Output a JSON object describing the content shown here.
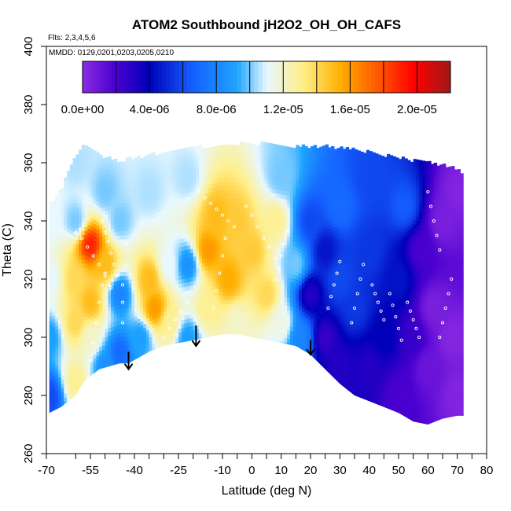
{
  "chart_data": {
    "type": "heatmap",
    "title": "ATOM2 Southbound jH2O2_OH_OH_CAFS",
    "flights_note": "Flts: 2,3,4,5,6",
    "dates_note": "MMDD: 0129,0201,0203,0205,0210",
    "xlabel": "Latitude (deg N)",
    "ylabel": "Theta (C)",
    "xlim": [
      -70,
      80
    ],
    "ylim": [
      260,
      400
    ],
    "x_ticks": [
      -70,
      -55,
      -40,
      -25,
      -10,
      0,
      10,
      20,
      30,
      40,
      50,
      60,
      70,
      80
    ],
    "x_tick_labels": [
      "-70",
      "-55",
      "-40",
      "-25",
      "-10",
      "0",
      "10",
      "20",
      "30",
      "40",
      "50",
      "60",
      "70",
      "80"
    ],
    "x_minor_ticks": [
      -60,
      -50,
      -45,
      -35,
      -30,
      -20,
      -15,
      -5,
      5,
      15,
      25,
      35,
      45,
      55,
      65,
      75
    ],
    "y_ticks": [
      260,
      280,
      300,
      320,
      340,
      360,
      380,
      400
    ],
    "y_tick_labels": [
      "260",
      "280",
      "300",
      "320",
      "340",
      "360",
      "380",
      "400"
    ],
    "colorbar": {
      "range": [
        0,
        2.2e-05
      ],
      "ticks": [
        0,
        4e-06,
        8e-06,
        1.2e-05,
        1.6e-05,
        2e-05
      ],
      "tick_labels": [
        "0.0e+00",
        "4.0e-06",
        "8.0e-06",
        "1.2e-05",
        "1.6e-05",
        "2.0e-05"
      ],
      "stops": [
        {
          "v": 0.0,
          "color": "#8a2be2"
        },
        {
          "v": 0.09,
          "color": "#4b00d0"
        },
        {
          "v": 0.18,
          "color": "#0000b8"
        },
        {
          "v": 0.3,
          "color": "#1560ff"
        },
        {
          "v": 0.42,
          "color": "#1ea5ff"
        },
        {
          "v": 0.5,
          "color": "#e8f8ff"
        },
        {
          "v": 0.6,
          "color": "#ffef88"
        },
        {
          "v": 0.7,
          "color": "#ffb000"
        },
        {
          "v": 0.83,
          "color": "#ff4000"
        },
        {
          "v": 0.9,
          "color": "#ff0000"
        },
        {
          "v": 1.0,
          "color": "#a01818"
        }
      ]
    },
    "terrain_floor_theta": [
      [
        -69,
        274
      ],
      [
        -65,
        276
      ],
      [
        -60,
        280
      ],
      [
        -57,
        285
      ],
      [
        -52,
        289
      ],
      [
        -45,
        291
      ],
      [
        -42,
        291
      ],
      [
        -35,
        295
      ],
      [
        -30,
        297
      ],
      [
        -25,
        298
      ],
      [
        -20,
        299
      ],
      [
        -15,
        300
      ],
      [
        -10,
        301
      ],
      [
        -5,
        301
      ],
      [
        0,
        300
      ],
      [
        5,
        299
      ],
      [
        10,
        298
      ],
      [
        15,
        297
      ],
      [
        20,
        294
      ],
      [
        25,
        289
      ],
      [
        30,
        284
      ],
      [
        35,
        280
      ],
      [
        40,
        278
      ],
      [
        45,
        276
      ],
      [
        50,
        274
      ],
      [
        55,
        271
      ],
      [
        60,
        270
      ],
      [
        65,
        272
      ],
      [
        70,
        273
      ]
    ],
    "data_top_theta": [
      [
        -69,
        345
      ],
      [
        -65,
        350
      ],
      [
        -60,
        362
      ],
      [
        -57,
        366
      ],
      [
        -52,
        362
      ],
      [
        -45,
        360
      ],
      [
        -35,
        362
      ],
      [
        -25,
        364
      ],
      [
        -15,
        365
      ],
      [
        -5,
        366
      ],
      [
        5,
        366
      ],
      [
        15,
        365
      ],
      [
        25,
        365
      ],
      [
        35,
        364
      ],
      [
        45,
        362
      ],
      [
        55,
        360
      ],
      [
        62,
        359
      ],
      [
        68,
        358
      ],
      [
        72,
        356
      ]
    ],
    "field_anchors": [
      {
        "lat": -69,
        "theta": 280,
        "value": 6e-06
      },
      {
        "lat": -69,
        "theta": 300,
        "value": 9e-06
      },
      {
        "lat": -69,
        "theta": 320,
        "value": 1.1e-05
      },
      {
        "lat": -69,
        "theta": 340,
        "value": 1.1e-05
      },
      {
        "lat": -60,
        "theta": 285,
        "value": 1.3e-05
      },
      {
        "lat": -60,
        "theta": 305,
        "value": 1.4e-05
      },
      {
        "lat": -60,
        "theta": 320,
        "value": 1.4e-05
      },
      {
        "lat": -60,
        "theta": 340,
        "value": 1e-05
      },
      {
        "lat": -60,
        "theta": 360,
        "value": 1.05e-05
      },
      {
        "lat": -55,
        "theta": 300,
        "value": 1.2e-05
      },
      {
        "lat": -55,
        "theta": 332,
        "value": 1.9e-05
      },
      {
        "lat": -55,
        "theta": 312,
        "value": 1.5e-05
      },
      {
        "lat": -50,
        "theta": 290,
        "value": 8.5e-06
      },
      {
        "lat": -50,
        "theta": 325,
        "value": 1.5e-05
      },
      {
        "lat": -50,
        "theta": 350,
        "value": 1e-05
      },
      {
        "lat": -45,
        "theta": 295,
        "value": 7e-06
      },
      {
        "lat": -45,
        "theta": 315,
        "value": 8e-06
      },
      {
        "lat": -45,
        "theta": 340,
        "value": 1e-05
      },
      {
        "lat": -38,
        "theta": 300,
        "value": 9e-06
      },
      {
        "lat": -35,
        "theta": 320,
        "value": 1.5e-05
      },
      {
        "lat": -33,
        "theta": 310,
        "value": 1.6e-05
      },
      {
        "lat": -35,
        "theta": 350,
        "value": 1.05e-05
      },
      {
        "lat": -28,
        "theta": 305,
        "value": 1.3e-05
      },
      {
        "lat": -28,
        "theta": 325,
        "value": 1.1e-05
      },
      {
        "lat": -22,
        "theta": 300,
        "value": 9e-06
      },
      {
        "lat": -22,
        "theta": 325,
        "value": 8.5e-06
      },
      {
        "lat": -22,
        "theta": 355,
        "value": 1.05e-05
      },
      {
        "lat": -15,
        "theta": 310,
        "value": 1.3e-05
      },
      {
        "lat": -15,
        "theta": 330,
        "value": 1.6e-05
      },
      {
        "lat": -12,
        "theta": 342,
        "value": 1.5e-05
      },
      {
        "lat": -8,
        "theta": 320,
        "value": 1.55e-05
      },
      {
        "lat": -5,
        "theta": 340,
        "value": 1.45e-05
      },
      {
        "lat": -5,
        "theta": 305,
        "value": 1.2e-05
      },
      {
        "lat": 0,
        "theta": 330,
        "value": 1.45e-05
      },
      {
        "lat": 5,
        "theta": 315,
        "value": 1.4e-05
      },
      {
        "lat": 8,
        "theta": 340,
        "value": 1.3e-05
      },
      {
        "lat": 10,
        "theta": 305,
        "value": 1.15e-05
      },
      {
        "lat": 10,
        "theta": 355,
        "value": 1e-05
      },
      {
        "lat": 15,
        "theta": 325,
        "value": 1e-05
      },
      {
        "lat": 17,
        "theta": 300,
        "value": 8e-06
      },
      {
        "lat": 20,
        "theta": 315,
        "value": 3e-06
      },
      {
        "lat": 20,
        "theta": 340,
        "value": 6e-06
      },
      {
        "lat": 25,
        "theta": 300,
        "value": 2.5e-06
      },
      {
        "lat": 25,
        "theta": 330,
        "value": 4.5e-06
      },
      {
        "lat": 30,
        "theta": 290,
        "value": 3e-06
      },
      {
        "lat": 30,
        "theta": 320,
        "value": 6e-06
      },
      {
        "lat": 30,
        "theta": 345,
        "value": 7e-06
      },
      {
        "lat": 35,
        "theta": 310,
        "value": 5.5e-06
      },
      {
        "lat": 40,
        "theta": 290,
        "value": 3e-06
      },
      {
        "lat": 40,
        "theta": 330,
        "value": 5.5e-06
      },
      {
        "lat": 40,
        "theta": 355,
        "value": 6e-06
      },
      {
        "lat": 45,
        "theta": 300,
        "value": 4e-06
      },
      {
        "lat": 50,
        "theta": 280,
        "value": 2e-06
      },
      {
        "lat": 50,
        "theta": 320,
        "value": 4.5e-06
      },
      {
        "lat": 52,
        "theta": 345,
        "value": 6.5e-06
      },
      {
        "lat": 55,
        "theta": 300,
        "value": 2.5e-06
      },
      {
        "lat": 58,
        "theta": 330,
        "value": 2e-06
      },
      {
        "lat": 60,
        "theta": 290,
        "value": 1e-06
      },
      {
        "lat": 62,
        "theta": 310,
        "value": 5e-07
      },
      {
        "lat": 65,
        "theta": 340,
        "value": 5e-07
      },
      {
        "lat": 68,
        "theta": 300,
        "value": 2e-07
      },
      {
        "lat": 70,
        "theta": 280,
        "value": 3e-07
      },
      {
        "lat": 70,
        "theta": 350,
        "value": 3e-07
      }
    ],
    "annotations": [
      {
        "type": "arrow",
        "lat": -42,
        "theta_from": 295,
        "theta_to": 289
      },
      {
        "type": "arrow",
        "lat": -19,
        "theta_from": 304,
        "theta_to": 297
      },
      {
        "type": "arrow",
        "lat": 20,
        "theta_from": 299,
        "theta_to": 294
      }
    ],
    "flight_tracks": [
      {
        "lat": [
          -57,
          -56,
          -55,
          -54,
          -53,
          -52,
          -51,
          -50
        ],
        "theta": [
          280,
          286,
          292,
          298,
          305,
          312,
          318,
          322
        ]
      },
      {
        "lat": [
          -60,
          -58,
          -56,
          -54,
          -52,
          -50,
          -48
        ],
        "theta": [
          336,
          334,
          331,
          328,
          325,
          321,
          317
        ]
      },
      {
        "lat": [
          -51,
          -50,
          -49,
          -48,
          -47,
          -46
        ],
        "theta": [
          340,
          336,
          333,
          329,
          325,
          321
        ]
      },
      {
        "lat": [
          -44,
          -44,
          -44,
          -43,
          -43
        ],
        "theta": [
          305,
          312,
          318,
          325,
          332
        ]
      },
      {
        "lat": [
          -30,
          -28,
          -26,
          -24,
          -22
        ],
        "theta": [
          300,
          303,
          306,
          309,
          312
        ]
      },
      {
        "lat": [
          -18,
          -16,
          -14,
          -12,
          -10,
          -8,
          -6
        ],
        "theta": [
          350,
          348,
          346,
          344,
          342,
          340,
          338
        ]
      },
      {
        "lat": [
          -13,
          -12,
          -11,
          -10,
          -9
        ],
        "theta": [
          310,
          316,
          322,
          328,
          334
        ]
      },
      {
        "lat": [
          -2,
          0,
          2,
          4,
          6,
          8
        ],
        "theta": [
          345,
          342,
          338,
          334,
          331,
          327
        ]
      },
      {
        "lat": [
          8,
          9,
          10,
          11,
          12
        ],
        "theta": [
          320,
          324,
          328,
          332,
          336
        ]
      },
      {
        "lat": [
          26,
          27,
          28,
          29,
          30
        ],
        "theta": [
          310,
          314,
          318,
          322,
          326
        ]
      },
      {
        "lat": [
          34,
          35,
          36,
          37,
          38
        ],
        "theta": [
          305,
          310,
          315,
          320,
          325
        ]
      },
      {
        "lat": [
          41,
          42,
          43,
          44,
          45
        ],
        "theta": [
          318,
          315,
          312,
          309,
          306
        ]
      },
      {
        "lat": [
          47,
          48,
          49,
          50,
          51
        ],
        "theta": [
          315,
          311,
          307,
          303,
          299
        ]
      },
      {
        "lat": [
          53,
          54,
          55,
          56,
          57
        ],
        "theta": [
          312,
          309,
          306,
          303,
          300
        ]
      },
      {
        "lat": [
          60,
          61,
          62,
          63,
          64
        ],
        "theta": [
          350,
          345,
          340,
          335,
          330
        ]
      },
      {
        "lat": [
          64,
          65,
          66,
          67,
          68
        ],
        "theta": [
          300,
          305,
          310,
          315,
          320
        ]
      }
    ]
  }
}
